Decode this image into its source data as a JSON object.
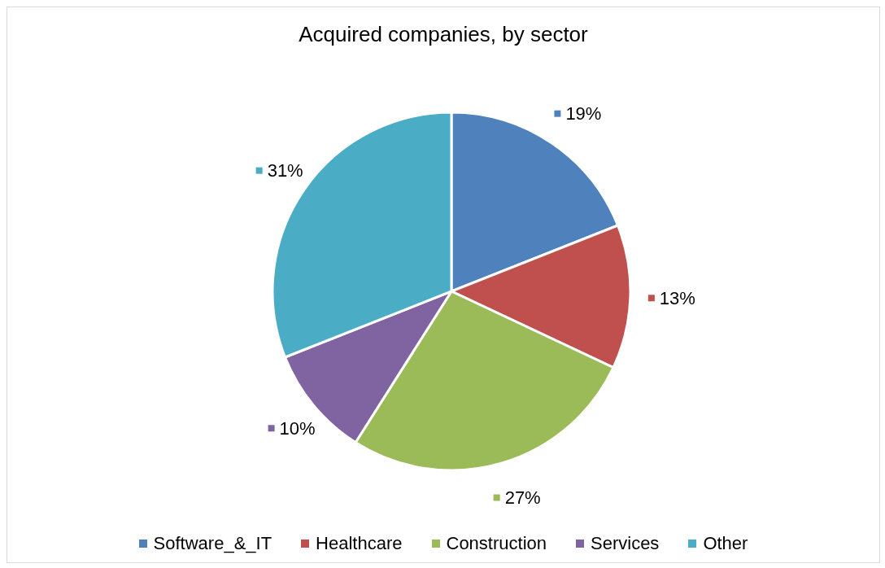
{
  "chart_data": {
    "type": "pie",
    "title": "Acquired companies, by sector",
    "categories": [
      "Software_&_IT",
      "Healthcare",
      "Construction",
      "Services",
      "Other"
    ],
    "values": [
      19,
      13,
      27,
      10,
      31
    ],
    "colors": [
      "#4f81bd",
      "#c0504d",
      "#9bbb59",
      "#8064a2",
      "#4bacc6"
    ],
    "value_labels": [
      "19%",
      "13%",
      "27%",
      "10%",
      "31%"
    ],
    "legend": "bottom"
  }
}
